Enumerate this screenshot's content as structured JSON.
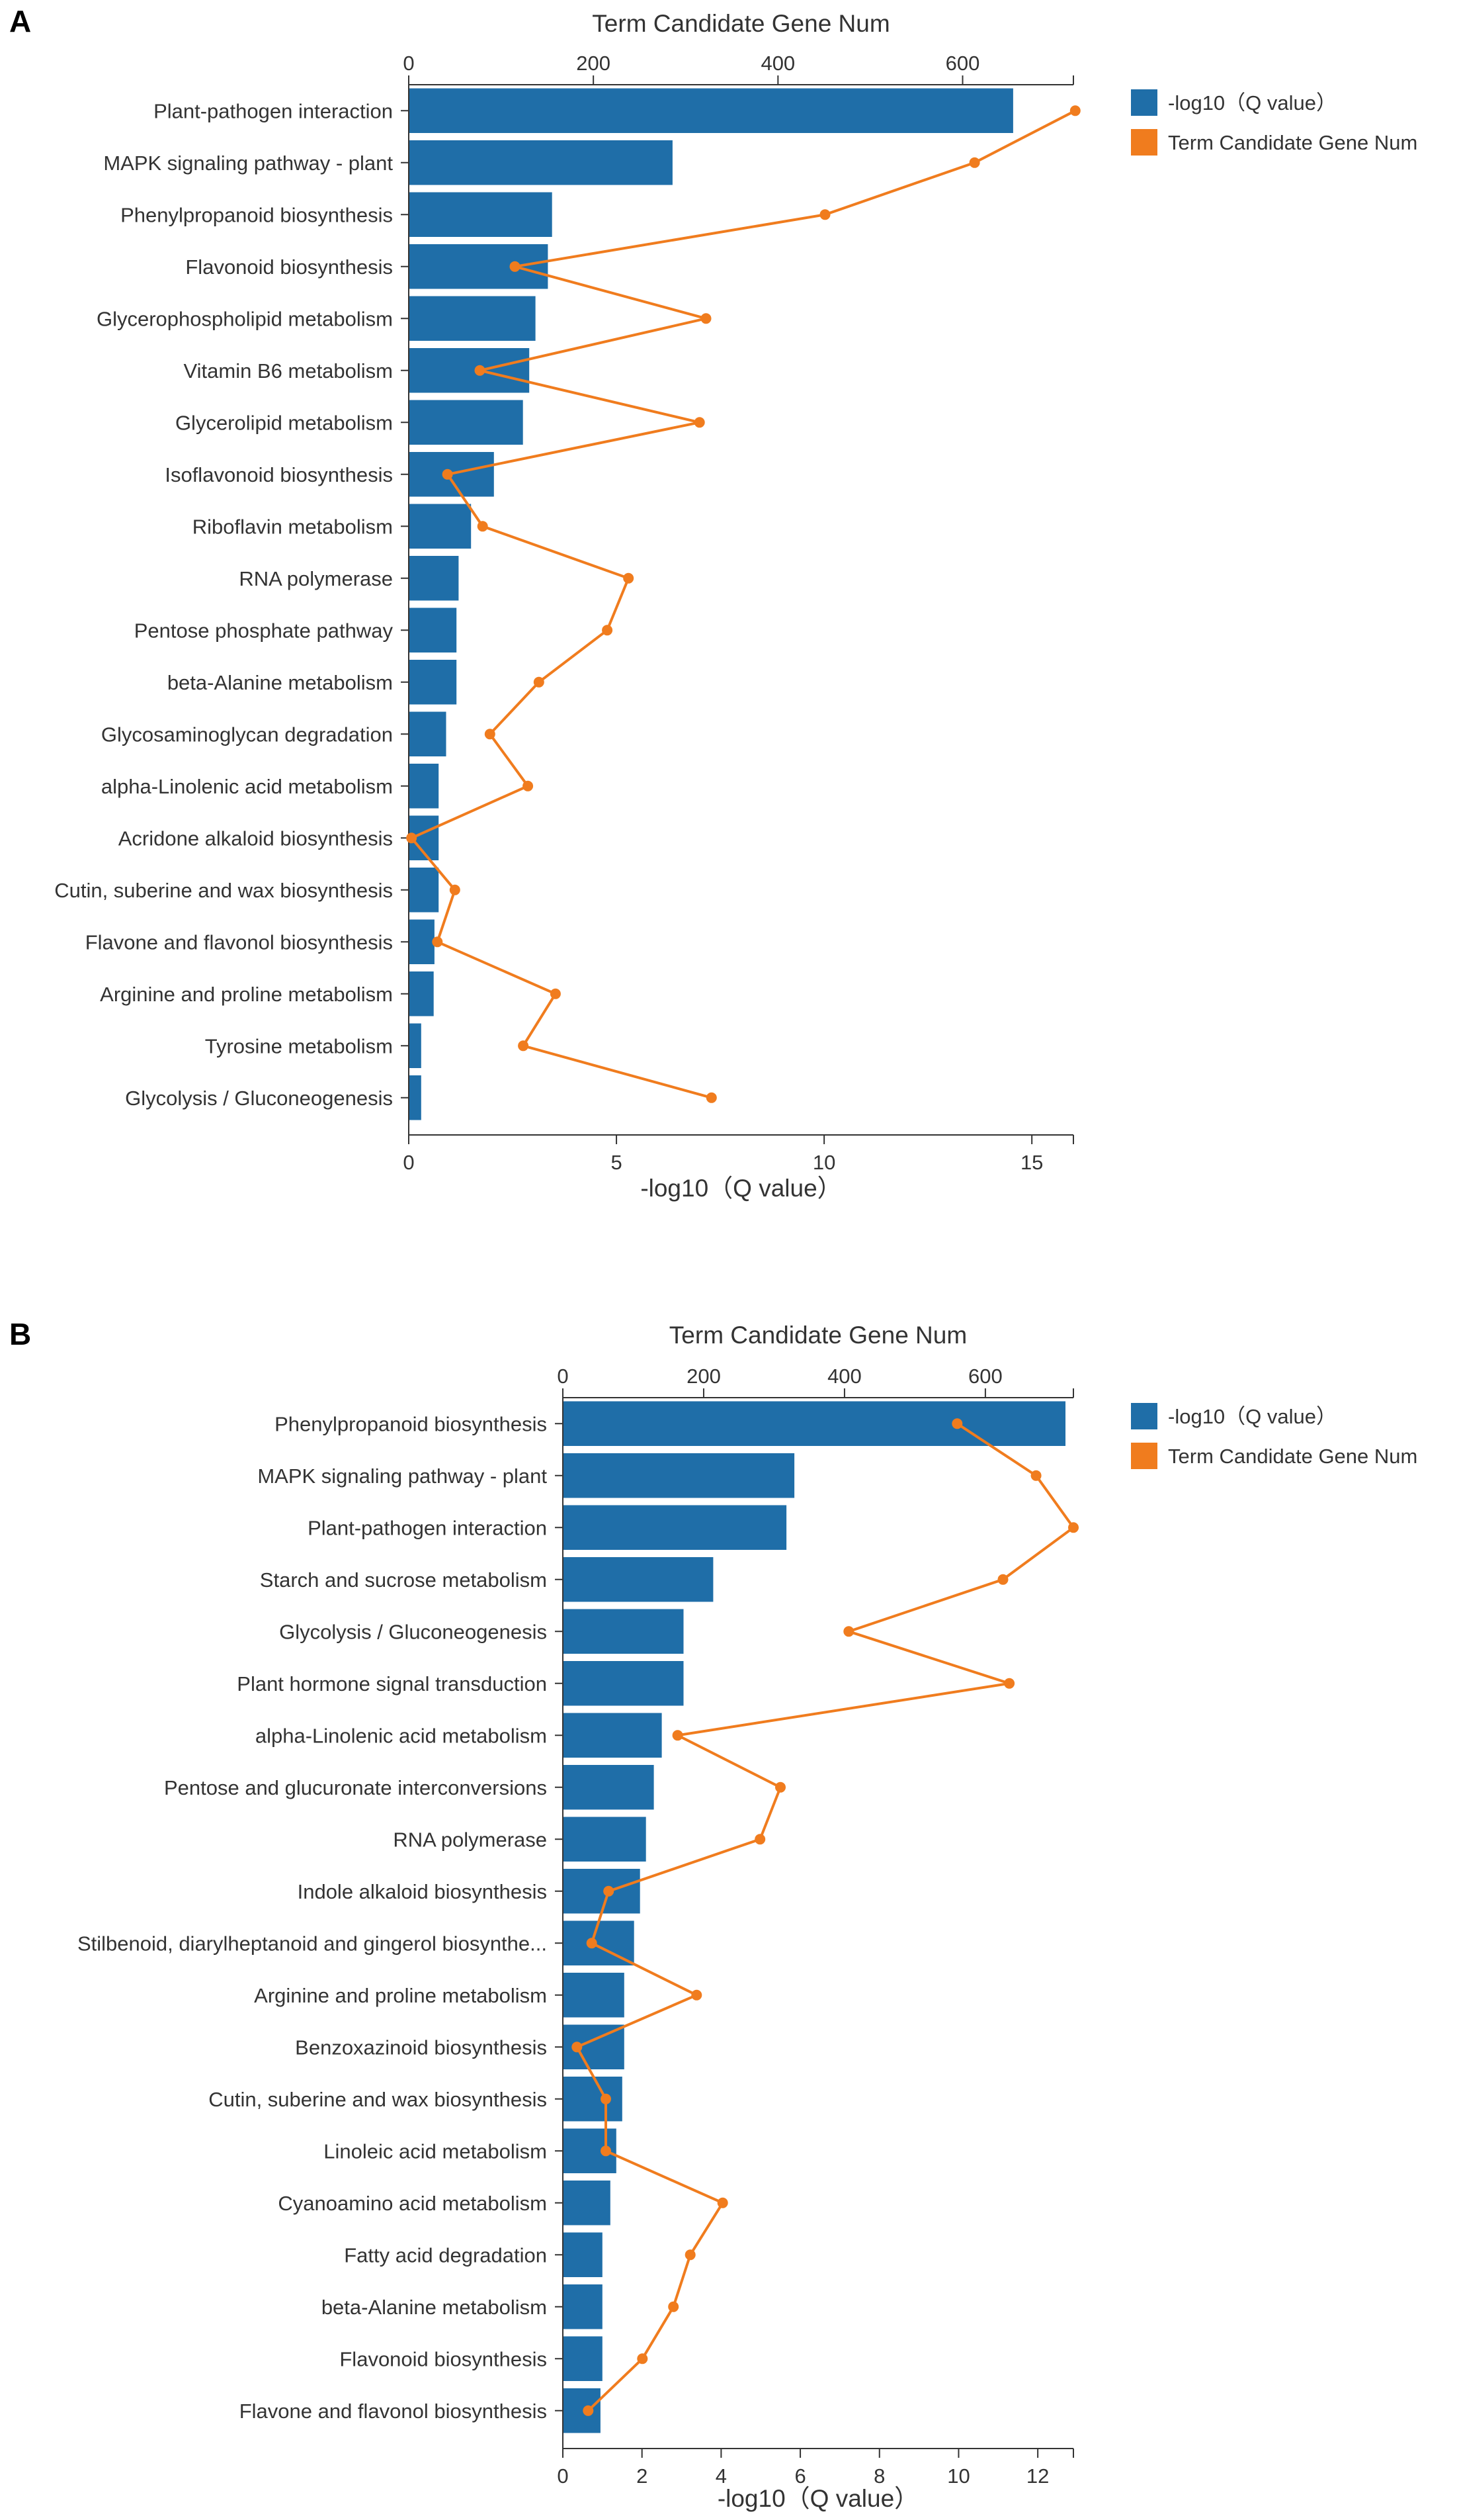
{
  "colors": {
    "bar": "#1f6ea8",
    "line": "#f07c1e"
  },
  "chart_data": [
    {
      "type": "bar",
      "panel": "A",
      "title": "",
      "top_axis_title": "Term Candidate Gene Num",
      "bottom_axis_title": "-log10（Q value）",
      "legend": [
        "-log10（Q value）",
        "Term Candidate Gene Num"
      ],
      "legend_position": "top-right",
      "xlim_bottom": [
        0,
        16
      ],
      "xticks_bottom": [
        0,
        5,
        10,
        15
      ],
      "xlim_top": [
        0,
        720
      ],
      "xticks_top": [
        0,
        200,
        400,
        600
      ],
      "categories": [
        "Plant-pathogen interaction",
        "MAPK signaling pathway - plant",
        "Phenylpropanoid biosynthesis",
        "Flavonoid biosynthesis",
        "Glycerophospholipid metabolism",
        "Vitamin B6 metabolism",
        "Glycerolipid metabolism",
        "Isoflavonoid biosynthesis",
        "Riboflavin metabolism",
        "RNA polymerase",
        "Pentose phosphate pathway",
        "beta-Alanine metabolism",
        "Glycosaminoglycan degradation",
        "alpha-Linolenic acid metabolism",
        "Acridone alkaloid biosynthesis",
        "Cutin, suberine and wax biosynthesis",
        "Flavone and flavonol biosynthesis",
        "Arginine and proline metabolism",
        "Tyrosine metabolism",
        "Glycolysis / Gluconeogenesis"
      ],
      "series": [
        {
          "name": "-log10（Q value）",
          "kind": "bar",
          "axis": "bottom",
          "values": [
            14.55,
            6.35,
            3.45,
            3.35,
            3.05,
            2.9,
            2.75,
            2.05,
            1.5,
            1.2,
            1.15,
            1.15,
            0.9,
            0.72,
            0.72,
            0.72,
            0.62,
            0.6,
            0.3,
            0.3
          ]
        },
        {
          "name": "Term Candidate Gene Num",
          "kind": "line",
          "axis": "top",
          "values": [
            722,
            613,
            451,
            115,
            322,
            77,
            315,
            42,
            80,
            238,
            215,
            141,
            88,
            129,
            3,
            50,
            31,
            159,
            124,
            328
          ]
        }
      ]
    },
    {
      "type": "bar",
      "panel": "B",
      "title": "",
      "top_axis_title": "Term Candidate Gene Num",
      "bottom_axis_title": "-log10（Q value）",
      "legend": [
        "-log10（Q value）",
        "Term Candidate Gene Num"
      ],
      "legend_position": "top-right",
      "xlim_bottom": [
        0,
        12.9
      ],
      "xticks_bottom": [
        0,
        2,
        4,
        6,
        8,
        10,
        12
      ],
      "xlim_top": [
        0,
        725
      ],
      "xticks_top": [
        0,
        200,
        400,
        600
      ],
      "categories": [
        "Phenylpropanoid biosynthesis",
        "MAPK signaling pathway - plant",
        "Plant-pathogen interaction",
        "Starch and sucrose metabolism",
        "Glycolysis / Gluconeogenesis",
        "Plant hormone signal transduction",
        "alpha-Linolenic acid metabolism",
        "Pentose and glucuronate interconversions",
        "RNA polymerase",
        "Indole alkaloid biosynthesis",
        "Stilbenoid, diarylheptanoid and gingerol biosynthe...",
        "Arginine and proline metabolism",
        "Benzoxazinoid biosynthesis",
        "Cutin, suberine and wax biosynthesis",
        "Linoleic acid metabolism",
        "Cyanoamino acid metabolism",
        "Fatty acid degradation",
        "beta-Alanine metabolism",
        "Flavonoid biosynthesis",
        "Flavone and flavonol biosynthesis"
      ],
      "series": [
        {
          "name": "-log10（Q value）",
          "kind": "bar",
          "axis": "bottom",
          "values": [
            12.7,
            5.85,
            5.65,
            3.8,
            3.05,
            3.05,
            2.5,
            2.3,
            2.1,
            1.95,
            1.8,
            1.55,
            1.55,
            1.5,
            1.35,
            1.2,
            1.0,
            1.0,
            1.0,
            0.95
          ]
        },
        {
          "name": "Term Candidate Gene Num",
          "kind": "line",
          "axis": "top",
          "values": [
            560,
            672,
            725,
            625,
            406,
            634,
            163,
            309,
            280,
            65,
            41,
            190,
            20,
            61,
            61,
            227,
            181,
            157,
            113,
            36
          ]
        }
      ]
    }
  ]
}
